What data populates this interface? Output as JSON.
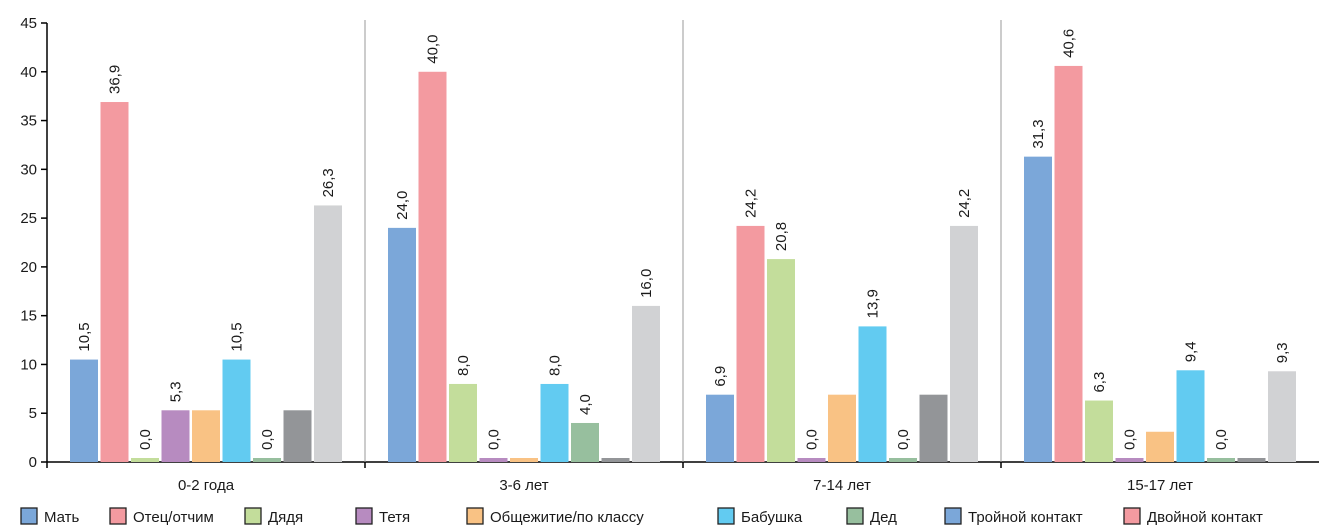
{
  "chart_data": {
    "type": "bar",
    "title": "",
    "xlabel": "",
    "ylabel": "",
    "ylim": [
      0,
      45
    ],
    "yticks": [
      0,
      5,
      10,
      15,
      20,
      25,
      30,
      35,
      40,
      45
    ],
    "grid": false,
    "legend_position": "bottom",
    "categories": [
      "0-2 года",
      "3-6 лет",
      "7-14 лет",
      "15-17 лет"
    ],
    "series": [
      {
        "name": "Мать",
        "color": "#7ba7d9",
        "values": [
          10.5,
          24.0,
          6.9,
          31.3
        ],
        "labels": [
          "10,5",
          "24,0",
          "6,9",
          "31,3"
        ]
      },
      {
        "name": "Отец/отчим",
        "color": "#f39aa0",
        "values": [
          36.9,
          40.0,
          24.2,
          40.6
        ],
        "labels": [
          "36,9",
          "40,0",
          "24,2",
          "40,6"
        ]
      },
      {
        "name": "Дядя",
        "color": "#c3dd9b",
        "values": [
          0.0,
          8.0,
          20.8,
          6.3
        ],
        "labels": [
          "0,0",
          "8,0",
          "20,8",
          "6,3"
        ]
      },
      {
        "name": "Тетя",
        "color": "#b78bc0",
        "values": [
          5.3,
          0.0,
          0.0,
          0.0
        ],
        "labels": [
          "5,3",
          "0,0",
          "0,0",
          "0,0"
        ]
      },
      {
        "name": "Общежитие/по классу",
        "color": "#f9c284",
        "values": [
          5.3,
          0.0,
          6.9,
          3.1
        ],
        "labels": [
          "",
          "",
          "",
          ""
        ]
      },
      {
        "name": "Бабушка",
        "color": "#62cbf1",
        "values": [
          10.5,
          8.0,
          13.9,
          9.4
        ],
        "labels": [
          "10,5",
          "8,0",
          "13,9",
          "9,4"
        ]
      },
      {
        "name": "Дед",
        "color": "#97bf9e",
        "values": [
          0.0,
          4.0,
          0.0,
          0.0
        ],
        "labels": [
          "0,0",
          "4,0",
          "0,0",
          "0,0"
        ]
      },
      {
        "name": "Тройной контакт",
        "color": "#939598",
        "values": [
          5.3,
          0.0,
          6.9,
          0.0
        ],
        "labels": [
          "",
          "",
          "",
          ""
        ]
      },
      {
        "name": "Двойной контакт",
        "color": "#d1d2d4",
        "values": [
          26.3,
          16.0,
          24.2,
          9.3
        ],
        "labels": [
          "26,3",
          "16,0",
          "24,2",
          "9,3"
        ]
      }
    ],
    "legend": [
      {
        "name": "Мать",
        "color": "#7ba7d9"
      },
      {
        "name": "Отец/отчим",
        "color": "#f39aa0"
      },
      {
        "name": "Дядя",
        "color": "#c3dd9b"
      },
      {
        "name": "Тетя",
        "color": "#b78bc0"
      },
      {
        "name": "Общежитие/по классу",
        "color": "#f9c284"
      },
      {
        "name": "Бабушка",
        "color": "#62cbf1"
      },
      {
        "name": "Дед",
        "color": "#97bf9e"
      },
      {
        "name": "Тройной контакт",
        "color": "#7ba7d9"
      },
      {
        "name": "Двойной контакт",
        "color": "#f39aa0"
      }
    ]
  }
}
